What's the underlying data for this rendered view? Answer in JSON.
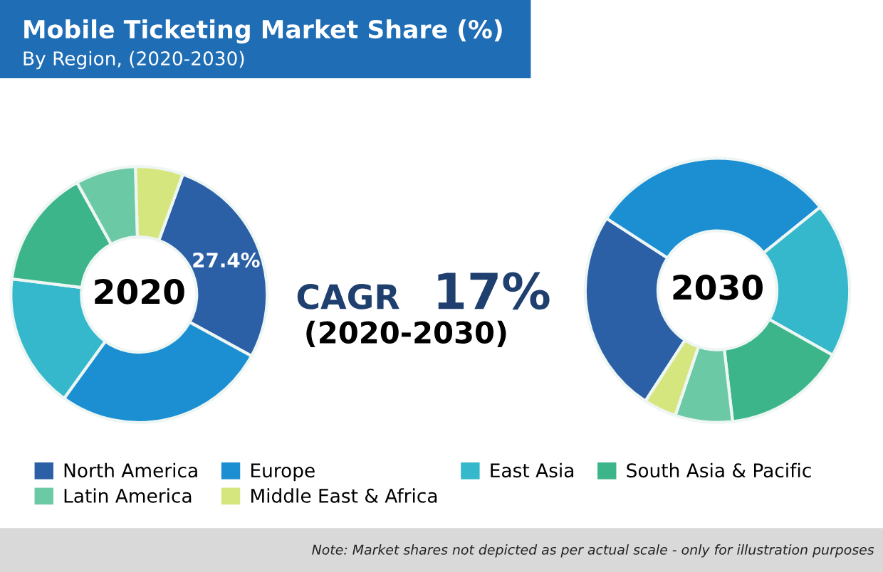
{
  "chart_data": [
    {
      "type": "donut",
      "title": "Mobile Ticketing Market Share (%)",
      "subtitle": "By Region, (2020-2030)",
      "categories": [
        "North America",
        "Europe",
        "East Asia",
        "South Asia & Pacific",
        "Latin America",
        "Middle East & Africa"
      ],
      "values": [
        27.4,
        27,
        17,
        15,
        7.6,
        6
      ],
      "value_labels": [
        "27.4%",
        null,
        null,
        null,
        null,
        null
      ],
      "colors": [
        "#2b5fa6",
        "#1b8fd2",
        "#35b8cc",
        "#3db58a",
        "#6cc9a6",
        "#d6e67e"
      ],
      "legend": "bottom",
      "annotations": [
        "2020",
        "CAGR",
        "17%",
        "(2020-2030)",
        "Note: Market shares not depicted as per actual scale - only for illustration purposes"
      ]
    },
    {
      "type": "donut",
      "values": [
        25,
        30,
        19,
        15,
        7,
        4
      ],
      "colors": [
        "#2b5fa6",
        "#1b8fd2",
        "#35b8cc",
        "#3db58a",
        "#6cc9a6",
        "#d6e67e"
      ],
      "annotations": [
        "2030"
      ]
    }
  ]
}
